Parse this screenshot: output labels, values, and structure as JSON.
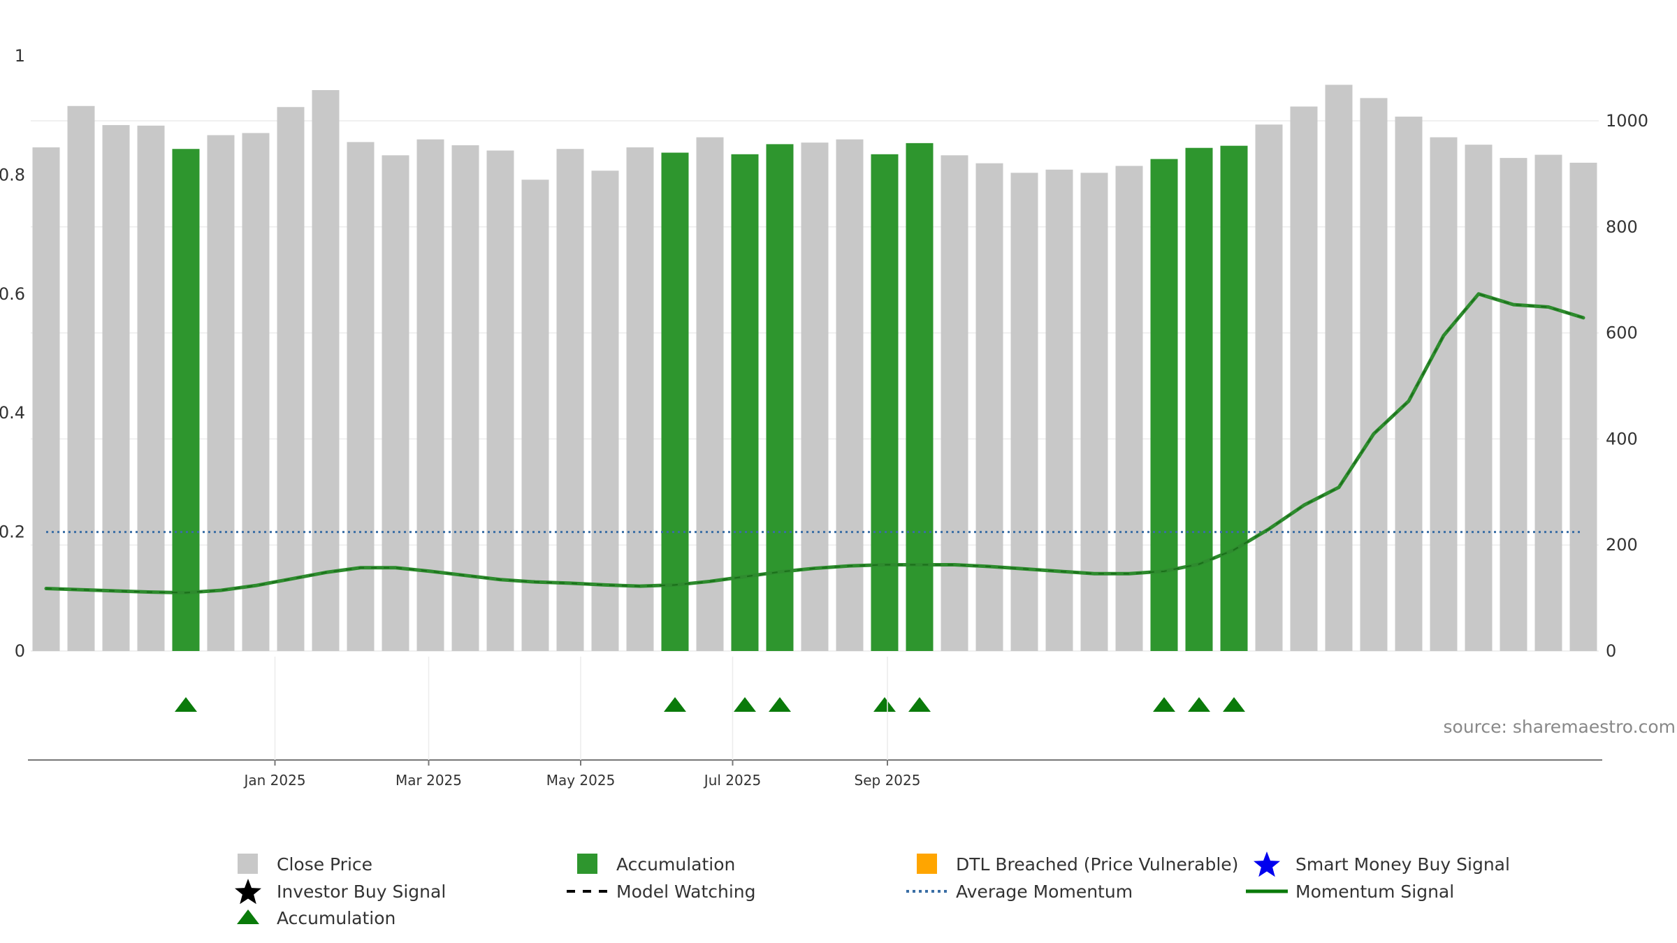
{
  "chart_data": {
    "type": "bar",
    "left_axis": {
      "ticks": [
        "0",
        "0.2",
        "0.4",
        "0.6",
        "0.8",
        "1"
      ],
      "ylim": [
        0,
        1
      ]
    },
    "right_axis": {
      "ticks": [
        "0",
        "200",
        "400",
        "600",
        "800",
        "1000"
      ],
      "ylim": [
        0,
        1125
      ]
    },
    "x_ticks": [
      "Jan 2025",
      "Mar 2025",
      "May 2025",
      "Jul 2025",
      "Sep 2025"
    ],
    "bars": {
      "name": "Close Price",
      "values": [
        950,
        1028,
        992,
        991,
        947,
        973,
        977,
        1026,
        1058,
        960,
        935,
        965,
        954,
        944,
        889,
        947,
        906,
        950,
        940,
        969,
        937,
        956,
        959,
        965,
        937,
        958,
        935,
        920,
        902,
        908,
        902,
        915,
        928,
        949,
        953,
        993,
        1027,
        1068,
        1043,
        1008,
        969,
        955,
        930,
        936,
        921
      ],
      "accumulation_flags": [
        0,
        0,
        0,
        0,
        1,
        0,
        0,
        0,
        0,
        0,
        0,
        0,
        0,
        0,
        0,
        0,
        0,
        0,
        1,
        0,
        1,
        1,
        0,
        0,
        1,
        1,
        0,
        0,
        0,
        0,
        0,
        0,
        1,
        1,
        1,
        0,
        0,
        0,
        0,
        0,
        0,
        0,
        0,
        0,
        0
      ]
    },
    "momentum_signal": {
      "name": "Momentum Signal",
      "values": [
        0.105,
        0.103,
        0.101,
        0.099,
        0.098,
        0.102,
        0.11,
        0.121,
        0.132,
        0.14,
        0.14,
        0.134,
        0.127,
        0.12,
        0.116,
        0.114,
        0.111,
        0.109,
        0.111,
        0.117,
        0.125,
        0.133,
        0.139,
        0.143,
        0.145,
        0.145,
        0.145,
        0.142,
        0.138,
        0.134,
        0.13,
        0.13,
        0.134,
        0.146,
        0.17,
        0.205,
        0.245,
        0.275,
        0.365,
        0.42,
        0.53,
        0.6,
        0.582,
        0.578,
        0.56
      ]
    },
    "average_momentum": {
      "name": "Average Momentum",
      "value": 0.2
    },
    "accumulation_markers_row": true,
    "source": "source: sharemaestro.com",
    "colors": {
      "close_price": "#c8c8c8",
      "accumulation": "#2e962e",
      "momentum": "#2e8b2e",
      "momentum_dash": "#0a5a0a",
      "average": "#3a6ea5",
      "triangle": "#0a7a0a",
      "dtl": "#ffa500",
      "smart_money": "#0000ee"
    },
    "legend": [
      {
        "label": "Close Price",
        "symbol": "gray-square"
      },
      {
        "label": "Accumulation",
        "symbol": "green-square"
      },
      {
        "label": "DTL Breached (Price Vulnerable)",
        "symbol": "orange-square"
      },
      {
        "label": "Smart Money Buy Signal",
        "symbol": "blue-star"
      },
      {
        "label": "Investor Buy Signal",
        "symbol": "black-star"
      },
      {
        "label": "Model Watching",
        "symbol": "black-dash"
      },
      {
        "label": "Average Momentum",
        "symbol": "blue-dotted"
      },
      {
        "label": "Momentum Signal",
        "symbol": "green-line"
      },
      {
        "label": "Accumulation",
        "symbol": "green-triangle"
      }
    ]
  }
}
